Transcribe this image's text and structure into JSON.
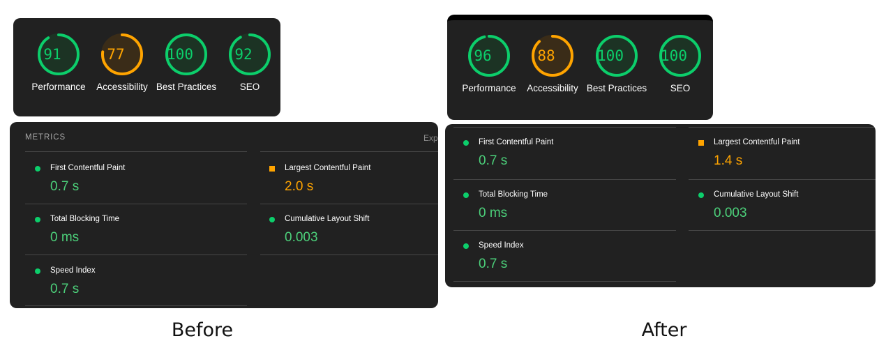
{
  "colors": {
    "panel": "#212121",
    "good": "#0cce6b",
    "average": "#ffa400"
  },
  "before": {
    "scores": [
      {
        "value": "91",
        "label": "Performance",
        "status": "good",
        "percent": 91
      },
      {
        "value": "77",
        "label": "Accessibility",
        "status": "average",
        "percent": 77
      },
      {
        "value": "100",
        "label": "Best Practices",
        "status": "good",
        "percent": 100
      },
      {
        "value": "92",
        "label": "SEO",
        "status": "good",
        "percent": 92
      }
    ],
    "metrics_title": "METRICS",
    "expand_label": "Exp",
    "metrics": {
      "fcp": {
        "name": "First Contentful Paint",
        "value": "0.7 s",
        "status": "good"
      },
      "lcp": {
        "name": "Largest Contentful Paint",
        "value": "2.0 s",
        "status": "average"
      },
      "tbt": {
        "name": "Total Blocking Time",
        "value": "0 ms",
        "status": "good"
      },
      "cls": {
        "name": "Cumulative Layout Shift",
        "value": "0.003",
        "status": "good"
      },
      "si": {
        "name": "Speed Index",
        "value": "0.7 s",
        "status": "good"
      }
    },
    "caption": "Before"
  },
  "after": {
    "scores": [
      {
        "value": "96",
        "label": "Performance",
        "status": "good",
        "percent": 96
      },
      {
        "value": "88",
        "label": "Accessibility",
        "status": "average",
        "percent": 88
      },
      {
        "value": "100",
        "label": "Best Practices",
        "status": "good",
        "percent": 100
      },
      {
        "value": "100",
        "label": "SEO",
        "status": "good",
        "percent": 100
      }
    ],
    "metrics": {
      "fcp": {
        "name": "First Contentful Paint",
        "value": "0.7 s",
        "status": "good"
      },
      "lcp": {
        "name": "Largest Contentful Paint",
        "value": "1.4 s",
        "status": "average"
      },
      "tbt": {
        "name": "Total Blocking Time",
        "value": "0 ms",
        "status": "good"
      },
      "cls": {
        "name": "Cumulative Layout Shift",
        "value": "0.003",
        "status": "good"
      },
      "si": {
        "name": "Speed Index",
        "value": "0.7 s",
        "status": "good"
      }
    },
    "caption": "After"
  }
}
